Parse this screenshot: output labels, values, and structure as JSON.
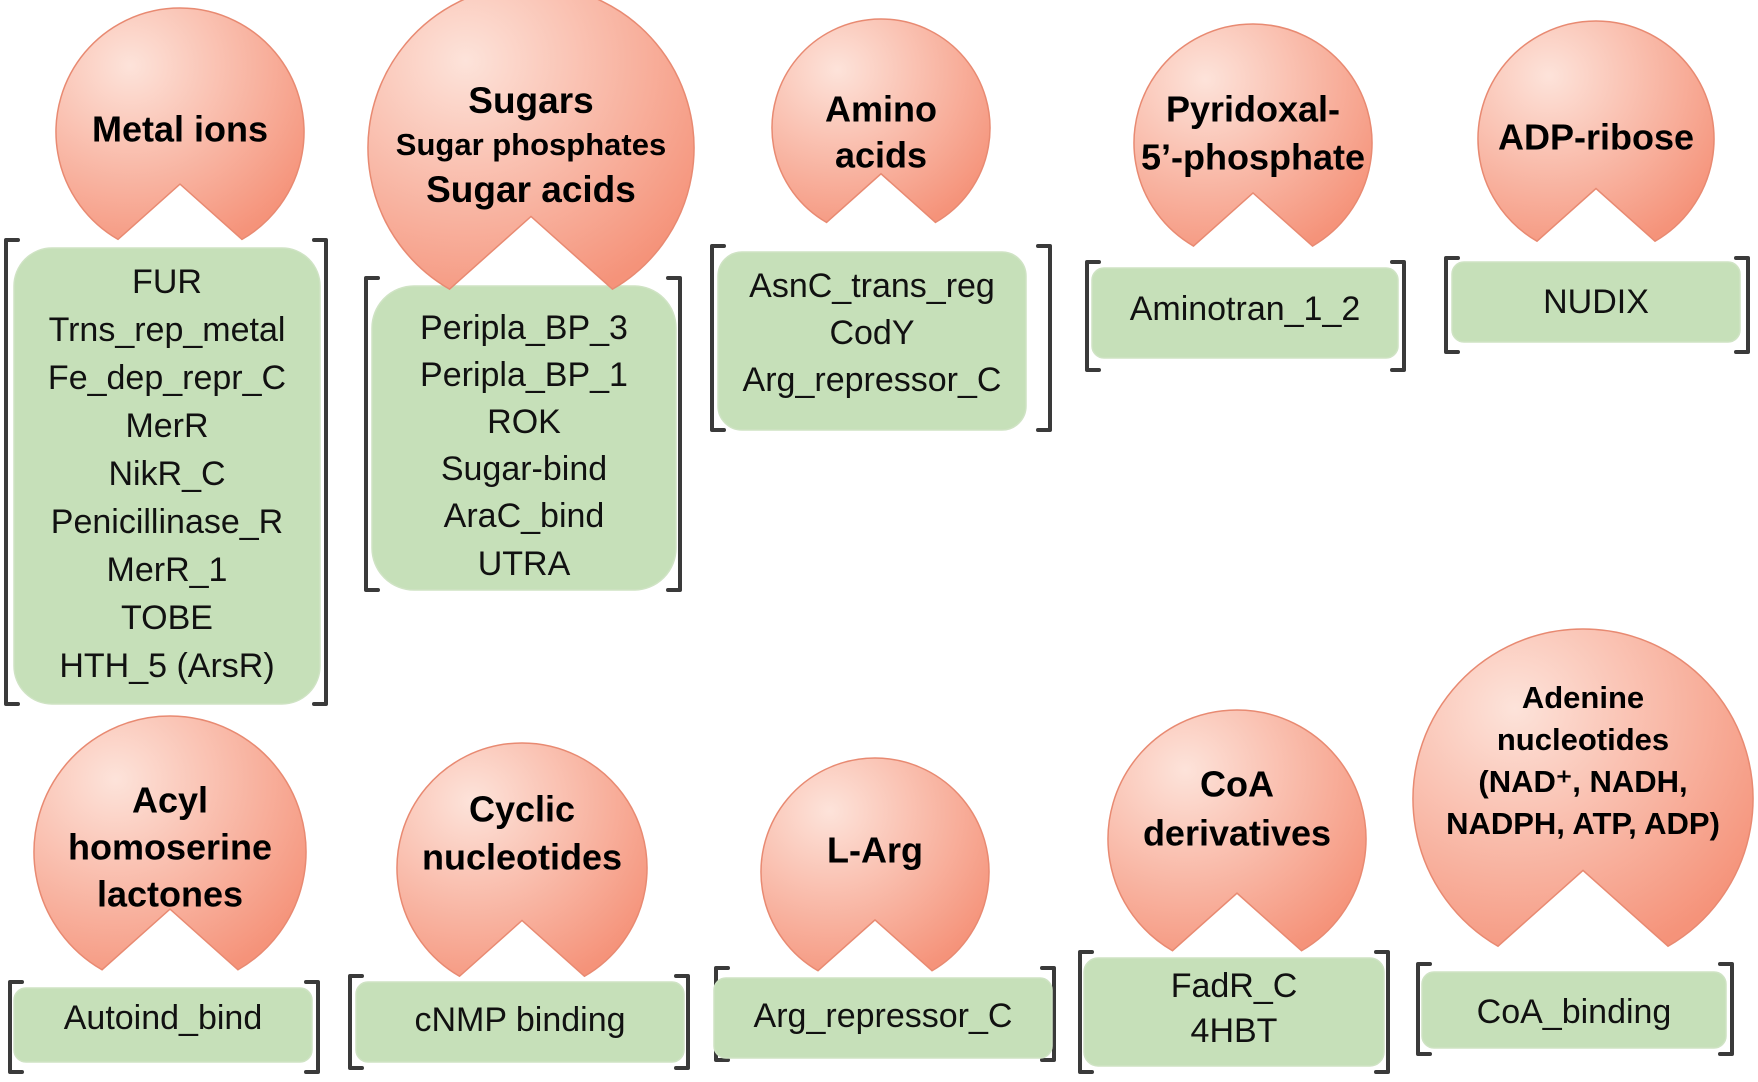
{
  "colors": {
    "ligand_fill_light": "#fde3da",
    "ligand_fill_dark": "#f5937a",
    "domain_box_fill": "#c6e0b9",
    "bracket": "#3a3a3a"
  },
  "groups": [
    {
      "id": "metal-ions",
      "ligand": [
        "Metal ions"
      ],
      "domains": [
        "FUR",
        "Trns_rep_metal",
        "Fe_dep_repr_C",
        "MerR",
        "NikR_C",
        "Penicillinase_R",
        "MerR_1",
        "TOBE",
        "HTH_5 (ArsR)"
      ]
    },
    {
      "id": "sugars",
      "ligand": [
        "Sugars",
        "Sugar phosphates",
        "Sugar acids"
      ],
      "domains": [
        "Peripla_BP_3",
        "Peripla_BP_1",
        "ROK",
        "Sugar-bind",
        "AraC_bind",
        "UTRA"
      ]
    },
    {
      "id": "amino-acids",
      "ligand": [
        "Amino",
        "acids"
      ],
      "domains": [
        "AsnC_trans_reg",
        "CodY",
        "Arg_repressor_C"
      ]
    },
    {
      "id": "pyridoxal",
      "ligand": [
        "Pyridoxal-",
        "5’-phosphate"
      ],
      "domains": [
        "Aminotran_1_2"
      ]
    },
    {
      "id": "adp-ribose",
      "ligand": [
        "ADP-ribose"
      ],
      "domains": [
        "NUDIX"
      ]
    },
    {
      "id": "acyl-homoserine",
      "ligand": [
        "Acyl",
        "homoserine",
        "lactones"
      ],
      "domains": [
        "Autoind_bind"
      ]
    },
    {
      "id": "cyclic-nucleotides",
      "ligand": [
        "Cyclic",
        "nucleotides"
      ],
      "domains": [
        "cNMP binding"
      ]
    },
    {
      "id": "l-arg",
      "ligand": [
        "L-Arg"
      ],
      "domains": [
        "Arg_repressor_C"
      ]
    },
    {
      "id": "coa-derivatives",
      "ligand": [
        "CoA",
        "derivatives"
      ],
      "domains": [
        "FadR_C",
        "4HBT"
      ]
    },
    {
      "id": "adenine-nucleotides",
      "ligand": [
        "Adenine",
        "nucleotides",
        "(NAD⁺, NADH,",
        "NADPH, ATP, ADP)"
      ],
      "domains": [
        "CoA_binding"
      ]
    }
  ]
}
